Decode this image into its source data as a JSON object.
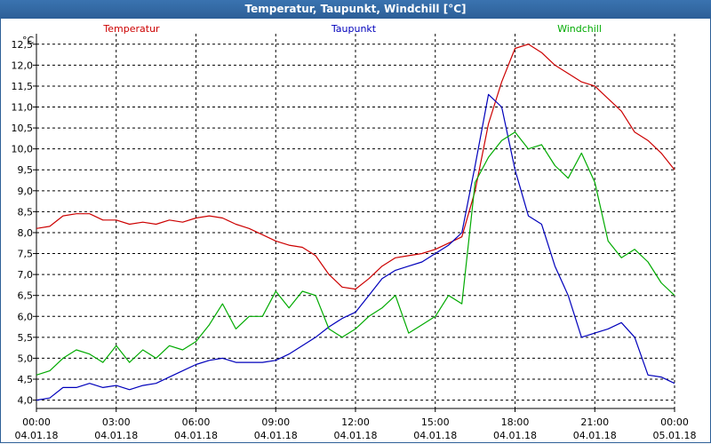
{
  "window": {
    "title": "Temperatur, Taupunkt, Windchill [°C]"
  },
  "chart_data": {
    "type": "line",
    "title": "Temperatur, Taupunkt, Windchill [°C]",
    "ylabel": "°C",
    "ylim": [
      3.8,
      12.75
    ],
    "xlim": [
      0,
      24
    ],
    "grid": true,
    "y_ticks": [
      "4,0",
      "4,5",
      "5,0",
      "5,5",
      "6,0",
      "6,5",
      "7,0",
      "7,5",
      "8,0",
      "8,5",
      "9,0",
      "9,5",
      "10,0",
      "10,5",
      "11,0",
      "11,5",
      "12,0",
      "12,5"
    ],
    "y_tick_values": [
      4.0,
      4.5,
      5.0,
      5.5,
      6.0,
      6.5,
      7.0,
      7.5,
      8.0,
      8.5,
      9.0,
      9.5,
      10.0,
      10.5,
      11.0,
      11.5,
      12.0,
      12.5
    ],
    "x_ticks": [
      {
        "hours": 0,
        "time": "00:00",
        "date": "04.01.18"
      },
      {
        "hours": 3,
        "time": "03:00",
        "date": "04.01.18"
      },
      {
        "hours": 6,
        "time": "06:00",
        "date": "04.01.18"
      },
      {
        "hours": 9,
        "time": "09:00",
        "date": "04.01.18"
      },
      {
        "hours": 12,
        "time": "12:00",
        "date": "04.01.18"
      },
      {
        "hours": 15,
        "time": "15:00",
        "date": "04.01.18"
      },
      {
        "hours": 18,
        "time": "18:00",
        "date": "04.01.18"
      },
      {
        "hours": 21,
        "time": "21:00",
        "date": "04.01.18"
      },
      {
        "hours": 24,
        "time": "00:00",
        "date": "05.01.18"
      }
    ],
    "series": [
      {
        "name": "Temperatur",
        "color": "#cc0000",
        "x": [
          0,
          0.5,
          1,
          1.5,
          2,
          2.5,
          3,
          3.5,
          4,
          4.5,
          5,
          5.5,
          6,
          6.5,
          7,
          7.5,
          8,
          8.5,
          9,
          9.5,
          10,
          10.5,
          11,
          11.5,
          12,
          12.5,
          13,
          13.5,
          14,
          14.5,
          15,
          15.5,
          16,
          16.5,
          17,
          17.5,
          18,
          18.5,
          19,
          19.5,
          20,
          20.5,
          21,
          21.5,
          22,
          22.5,
          23,
          23.5,
          24
        ],
        "values": [
          8.1,
          8.15,
          8.4,
          8.45,
          8.45,
          8.3,
          8.3,
          8.2,
          8.25,
          8.2,
          8.3,
          8.25,
          8.35,
          8.4,
          8.35,
          8.2,
          8.1,
          7.95,
          7.8,
          7.7,
          7.65,
          7.45,
          7.0,
          6.7,
          6.65,
          6.9,
          7.2,
          7.4,
          7.45,
          7.5,
          7.6,
          7.75,
          7.9,
          9.0,
          10.6,
          11.6,
          12.4,
          12.5,
          12.3,
          12.0,
          11.8,
          11.6,
          11.5,
          11.2,
          10.9,
          10.4,
          10.2,
          9.9,
          9.5
        ]
      },
      {
        "name": "Taupunkt",
        "color": "#0000bb",
        "x": [
          0,
          0.5,
          1,
          1.5,
          2,
          2.5,
          3,
          3.5,
          4,
          4.5,
          5,
          5.5,
          6,
          6.5,
          7,
          7.5,
          8,
          8.5,
          9,
          9.5,
          10,
          10.5,
          11,
          11.5,
          12,
          12.5,
          13,
          13.5,
          14,
          14.5,
          15,
          15.5,
          16,
          16.5,
          17,
          17.5,
          18,
          18.5,
          19,
          19.5,
          20,
          20.5,
          21,
          21.5,
          22,
          22.5,
          23,
          23.5,
          24
        ],
        "values": [
          4.0,
          4.05,
          4.3,
          4.3,
          4.4,
          4.3,
          4.35,
          4.25,
          4.35,
          4.4,
          4.55,
          4.7,
          4.85,
          4.95,
          5.0,
          4.9,
          4.9,
          4.9,
          4.95,
          5.1,
          5.3,
          5.5,
          5.75,
          5.95,
          6.1,
          6.5,
          6.9,
          7.1,
          7.2,
          7.3,
          7.5,
          7.7,
          8.0,
          9.6,
          11.3,
          11.0,
          9.5,
          8.4,
          8.2,
          7.2,
          6.5,
          5.5,
          5.6,
          5.7,
          5.85,
          5.5,
          4.6,
          4.55,
          4.4
        ]
      },
      {
        "name": "Windchill",
        "color": "#00aa00",
        "x": [
          0,
          0.5,
          1,
          1.5,
          2,
          2.5,
          3,
          3.5,
          4,
          4.5,
          5,
          5.5,
          6,
          6.5,
          7,
          7.5,
          8,
          8.5,
          9,
          9.5,
          10,
          10.5,
          11,
          11.5,
          12,
          12.5,
          13,
          13.5,
          14,
          14.5,
          15,
          15.5,
          16,
          16.5,
          17,
          17.5,
          18,
          18.5,
          19,
          19.5,
          20,
          20.5,
          21,
          21.5,
          22,
          22.5,
          23,
          23.5,
          24
        ],
        "values": [
          4.6,
          4.7,
          5.0,
          5.2,
          5.1,
          4.9,
          5.3,
          4.9,
          5.2,
          5.0,
          5.3,
          5.2,
          5.4,
          5.8,
          6.3,
          5.7,
          6.0,
          6.0,
          6.6,
          6.2,
          6.6,
          6.5,
          5.7,
          5.5,
          5.7,
          6.0,
          6.2,
          6.5,
          5.6,
          5.8,
          6.0,
          6.5,
          6.3,
          9.2,
          9.8,
          10.2,
          10.4,
          10.0,
          10.1,
          9.6,
          9.3,
          9.9,
          9.2,
          7.8,
          7.4,
          7.6,
          7.3,
          6.8,
          6.5
        ]
      }
    ]
  }
}
